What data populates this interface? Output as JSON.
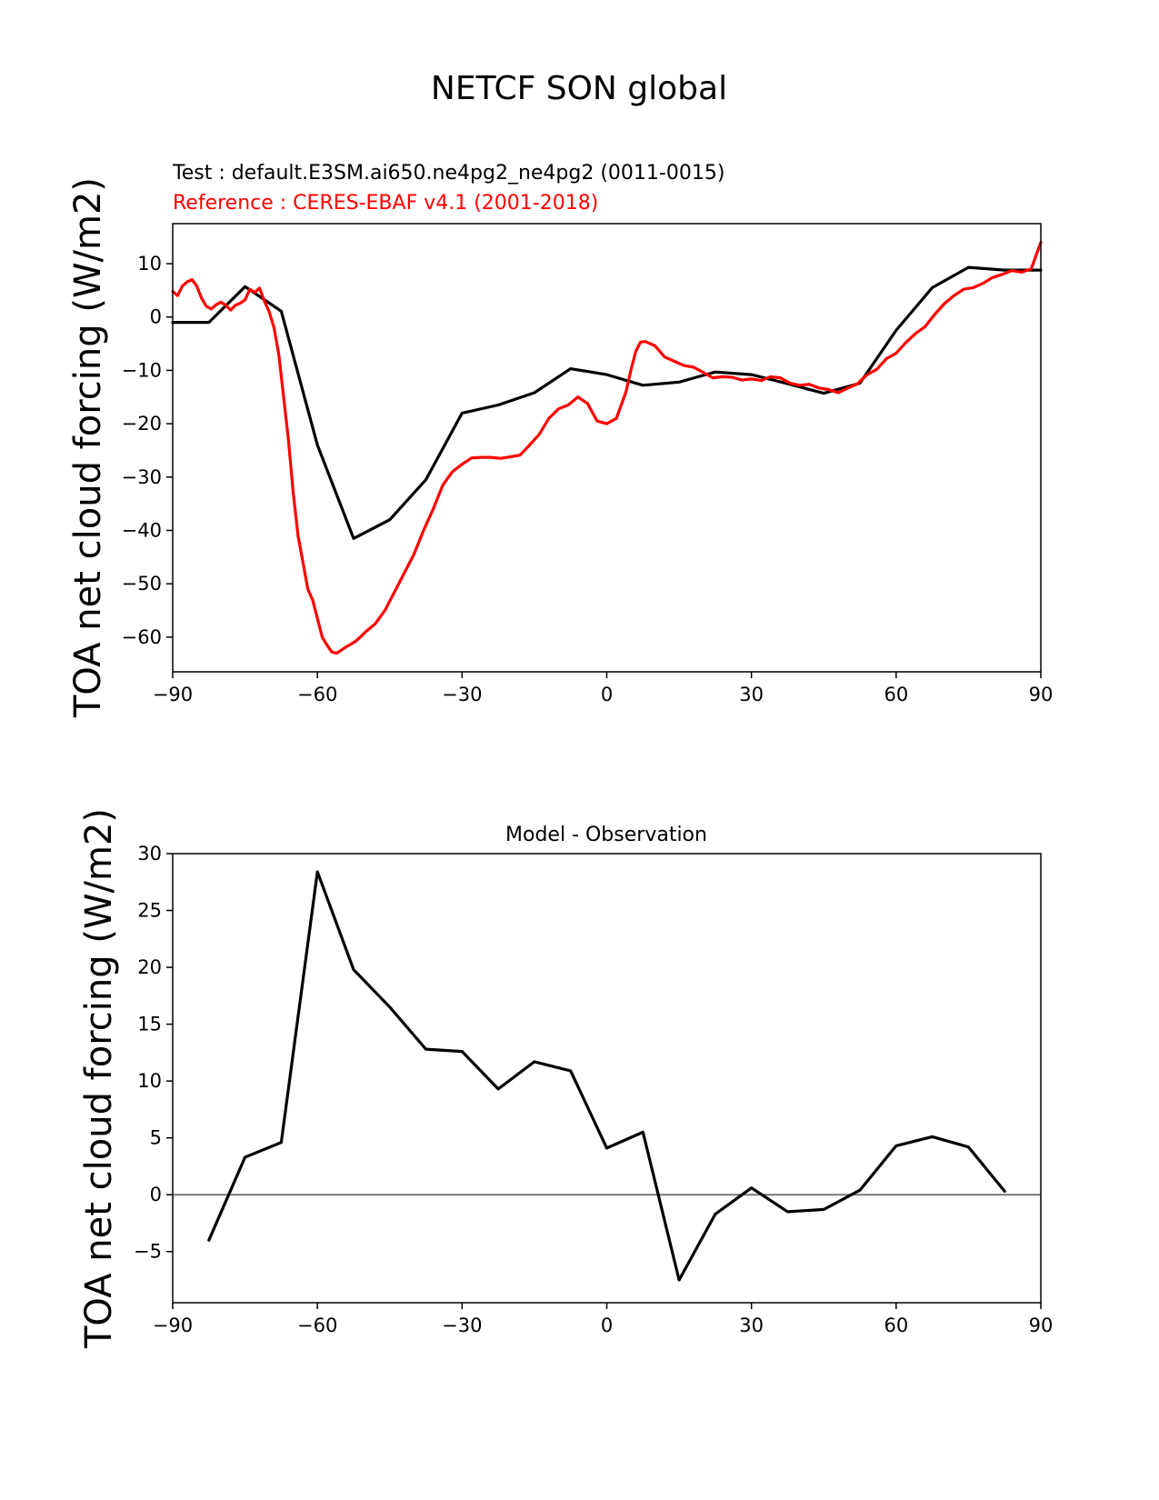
{
  "page": {
    "title": "NETCF SON global"
  },
  "chart_data": [
    {
      "type": "line",
      "test_label": "Test : default.E3SM.ai650.ne4pg2_ne4pg2 (0011-0015)",
      "reference_label": "Reference : CERES-EBAF v4.1 (2001-2018)",
      "ylabel": "TOA net cloud forcing (W/m2)",
      "xlabel": "",
      "xlim": [
        -90,
        90
      ],
      "ylim": [
        -66.5,
        17.5
      ],
      "xticks": [
        -90,
        -60,
        -30,
        0,
        30,
        60,
        90
      ],
      "xtick_labels": [
        "−90",
        "−60",
        "−30",
        "0",
        "30",
        "60",
        "90"
      ],
      "yticks": [
        10,
        0,
        -10,
        -20,
        -30,
        -40,
        -50,
        -60
      ],
      "ytick_labels": [
        "10",
        "0",
        "−10",
        "−20",
        "−30",
        "−40",
        "−50",
        "−60"
      ],
      "series": [
        {
          "color": "#000000",
          "x": [
            -90,
            -82.5,
            -75,
            -67.5,
            -60,
            -52.5,
            -45,
            -37.5,
            -30,
            -22.5,
            -15,
            -7.5,
            0,
            7.5,
            15,
            22.5,
            30,
            37.5,
            45,
            52.5,
            60,
            67.5,
            75,
            82.5,
            90
          ],
          "y": [
            -1,
            -1,
            5.7,
            1.1,
            -24,
            -41.5,
            -38,
            -30.5,
            -18,
            -16.5,
            -14.2,
            -9.7,
            -10.8,
            -12.8,
            -12.2,
            -10.3,
            -10.8,
            -12.5,
            -14.3,
            -12.4,
            -2.5,
            5.5,
            9.3,
            8.8,
            8.8
          ]
        },
        {
          "color": "#ff0000",
          "x": [
            -90,
            -89,
            -88,
            -87,
            -86,
            -85,
            -84,
            -83,
            -82,
            -81,
            -80,
            -79,
            -78,
            -77,
            -76,
            -75,
            -74,
            -73,
            -72,
            -71,
            -70,
            -69,
            -68,
            -67,
            -66,
            -65,
            -64,
            -63,
            -62,
            -61,
            -60,
            -59,
            -58,
            -57,
            -56,
            -55,
            -54,
            -53,
            -52,
            -51,
            -50,
            -48,
            -46,
            -44,
            -42,
            -40,
            -38,
            -36,
            -34,
            -32,
            -30,
            -28,
            -26,
            -24,
            -22,
            -20,
            -18,
            -16,
            -14,
            -12,
            -10,
            -8,
            -6,
            -4,
            -2,
            0,
            2,
            4,
            5,
            6,
            7,
            8,
            10,
            12,
            14,
            16,
            18,
            20,
            22,
            24,
            26,
            28,
            30,
            32,
            34,
            36,
            38,
            40,
            42,
            44,
            46,
            48,
            50,
            52,
            54,
            56,
            58,
            60,
            62,
            64,
            66,
            68,
            70,
            72,
            74,
            76,
            78,
            80,
            82,
            84,
            86,
            88,
            89,
            90
          ],
          "y": [
            4.8,
            4,
            5.8,
            6.6,
            7,
            5.8,
            3.5,
            2,
            1.5,
            2.3,
            2.8,
            2.2,
            1.3,
            2.2,
            2.6,
            3.2,
            5.2,
            4.6,
            5.4,
            3,
            1,
            -2,
            -7,
            -15,
            -23,
            -33,
            -41,
            -46,
            -51,
            -53,
            -56.5,
            -60,
            -61.5,
            -62.8,
            -63,
            -62.4,
            -61.8,
            -61.3,
            -60.7,
            -59.9,
            -59,
            -57.5,
            -55,
            -51.5,
            -48,
            -44.5,
            -40,
            -36,
            -31.5,
            -29,
            -27.6,
            -26.4,
            -26.3,
            -26.3,
            -26.5,
            -26.2,
            -25.9,
            -24,
            -22,
            -19,
            -17.2,
            -16.5,
            -15,
            -16.2,
            -19.5,
            -20,
            -19,
            -14,
            -10,
            -6.5,
            -4.7,
            -4.6,
            -5.4,
            -7.5,
            -8.3,
            -9.1,
            -9.4,
            -10.4,
            -11.4,
            -11.2,
            -11.3,
            -11.8,
            -11.6,
            -11.9,
            -11.2,
            -11.4,
            -12.4,
            -12.8,
            -12.6,
            -13.3,
            -13.6,
            -14.2,
            -13.3,
            -12.5,
            -10.8,
            -9.8,
            -7.8,
            -6.8,
            -4.8,
            -3.1,
            -1.8,
            0.5,
            2.5,
            4,
            5.2,
            5.5,
            6.3,
            7.4,
            8,
            8.7,
            8.4,
            9,
            11.5,
            14
          ]
        }
      ]
    },
    {
      "type": "line",
      "title": "Model - Observation",
      "ylabel": "TOA net cloud forcing (W/m2)",
      "xlabel": "",
      "xlim": [
        -90,
        90
      ],
      "ylim": [
        -9.5,
        30
      ],
      "xticks": [
        -90,
        -60,
        -30,
        0,
        30,
        60,
        90
      ],
      "xtick_labels": [
        "−90",
        "−60",
        "−30",
        "0",
        "30",
        "60",
        "90"
      ],
      "yticks": [
        30,
        25,
        20,
        15,
        10,
        5,
        0,
        -5
      ],
      "ytick_labels": [
        "30",
        "25",
        "20",
        "15",
        "10",
        "5",
        "0",
        "−5"
      ],
      "zero_line": true,
      "series": [
        {
          "color": "#000000",
          "x": [
            -82.5,
            -75,
            -67.5,
            -60,
            -52.5,
            -45,
            -37.5,
            -30,
            -22.5,
            -15,
            -7.5,
            0,
            7.5,
            15,
            22.5,
            30,
            37.5,
            45,
            52.5,
            60,
            67.5,
            75,
            82.5
          ],
          "y": [
            -4,
            3.3,
            4.6,
            28.4,
            19.8,
            16.5,
            12.8,
            12.6,
            9.3,
            11.7,
            10.9,
            4.1,
            5.5,
            -7.5,
            -1.7,
            0.6,
            -1.5,
            -1.3,
            0.4,
            4.3,
            5.1,
            4.2,
            0.3
          ]
        }
      ]
    }
  ]
}
